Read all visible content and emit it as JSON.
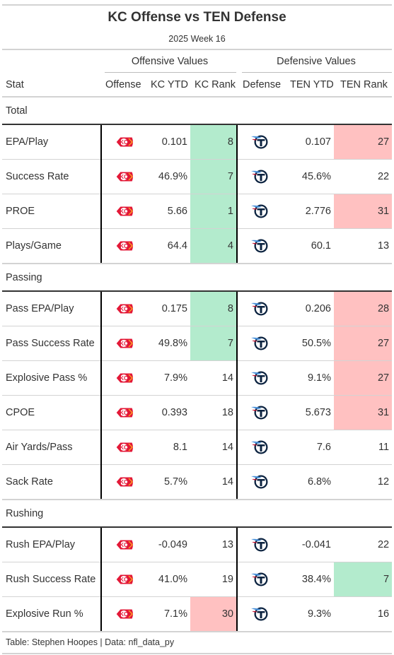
{
  "title": "KC Offense vs TEN Defense",
  "subtitle": "2025 Week 16",
  "spanners": {
    "offense": "Offensive Values",
    "defense": "Defensive Values"
  },
  "columns": {
    "stat": "Stat",
    "offense": "Offense",
    "kc_ytd": "KC YTD",
    "kc_rank": "KC Rank",
    "defense": "Defense",
    "ten_ytd": "TEN YTD",
    "ten_rank": "TEN Rank"
  },
  "icons": {
    "offense_logo": "chiefs-logo-icon",
    "defense_logo": "titans-logo-icon"
  },
  "colors": {
    "good": "#b3ebcd",
    "bad": "#ffc1c1",
    "chiefs_red": "#e31837",
    "titans_navy": "#0c2340",
    "titans_blue": "#4b92db"
  },
  "groups": [
    {
      "label": "Total",
      "rows": [
        {
          "stat": "EPA/Play",
          "kc_ytd": "0.101",
          "kc_rank": "8",
          "kc_color": "good",
          "ten_ytd": "0.107",
          "ten_rank": "27",
          "ten_color": "bad"
        },
        {
          "stat": "Success Rate",
          "kc_ytd": "46.9%",
          "kc_rank": "7",
          "kc_color": "good",
          "ten_ytd": "45.6%",
          "ten_rank": "22",
          "ten_color": ""
        },
        {
          "stat": "PROE",
          "kc_ytd": "5.66",
          "kc_rank": "1",
          "kc_color": "good",
          "ten_ytd": "2.776",
          "ten_rank": "31",
          "ten_color": "bad"
        },
        {
          "stat": "Plays/Game",
          "kc_ytd": "64.4",
          "kc_rank": "4",
          "kc_color": "good",
          "ten_ytd": "60.1",
          "ten_rank": "13",
          "ten_color": ""
        }
      ]
    },
    {
      "label": "Passing",
      "rows": [
        {
          "stat": "Pass EPA/Play",
          "kc_ytd": "0.175",
          "kc_rank": "8",
          "kc_color": "good",
          "ten_ytd": "0.206",
          "ten_rank": "28",
          "ten_color": "bad"
        },
        {
          "stat": "Pass Success Rate",
          "kc_ytd": "49.8%",
          "kc_rank": "7",
          "kc_color": "good",
          "ten_ytd": "50.5%",
          "ten_rank": "27",
          "ten_color": "bad"
        },
        {
          "stat": "Explosive Pass %",
          "kc_ytd": "7.9%",
          "kc_rank": "14",
          "kc_color": "",
          "ten_ytd": "9.1%",
          "ten_rank": "27",
          "ten_color": "bad"
        },
        {
          "stat": "CPOE",
          "kc_ytd": "0.393",
          "kc_rank": "18",
          "kc_color": "",
          "ten_ytd": "5.673",
          "ten_rank": "31",
          "ten_color": "bad"
        },
        {
          "stat": "Air Yards/Pass",
          "kc_ytd": "8.1",
          "kc_rank": "14",
          "kc_color": "",
          "ten_ytd": "7.6",
          "ten_rank": "11",
          "ten_color": ""
        },
        {
          "stat": "Sack Rate",
          "kc_ytd": "5.7%",
          "kc_rank": "14",
          "kc_color": "",
          "ten_ytd": "6.8%",
          "ten_rank": "12",
          "ten_color": ""
        }
      ]
    },
    {
      "label": "Rushing",
      "rows": [
        {
          "stat": "Rush EPA/Play",
          "kc_ytd": "-0.049",
          "kc_rank": "13",
          "kc_color": "",
          "ten_ytd": "-0.041",
          "ten_rank": "22",
          "ten_color": ""
        },
        {
          "stat": "Rush Success Rate",
          "kc_ytd": "41.0%",
          "kc_rank": "19",
          "kc_color": "",
          "ten_ytd": "38.4%",
          "ten_rank": "7",
          "ten_color": "good"
        },
        {
          "stat": "Explosive Run %",
          "kc_ytd": "7.1%",
          "kc_rank": "30",
          "kc_color": "bad",
          "ten_ytd": "9.3%",
          "ten_rank": "16",
          "ten_color": ""
        }
      ]
    }
  ],
  "source": "Table: Stephen Hoopes | Data: nfl_data_py"
}
